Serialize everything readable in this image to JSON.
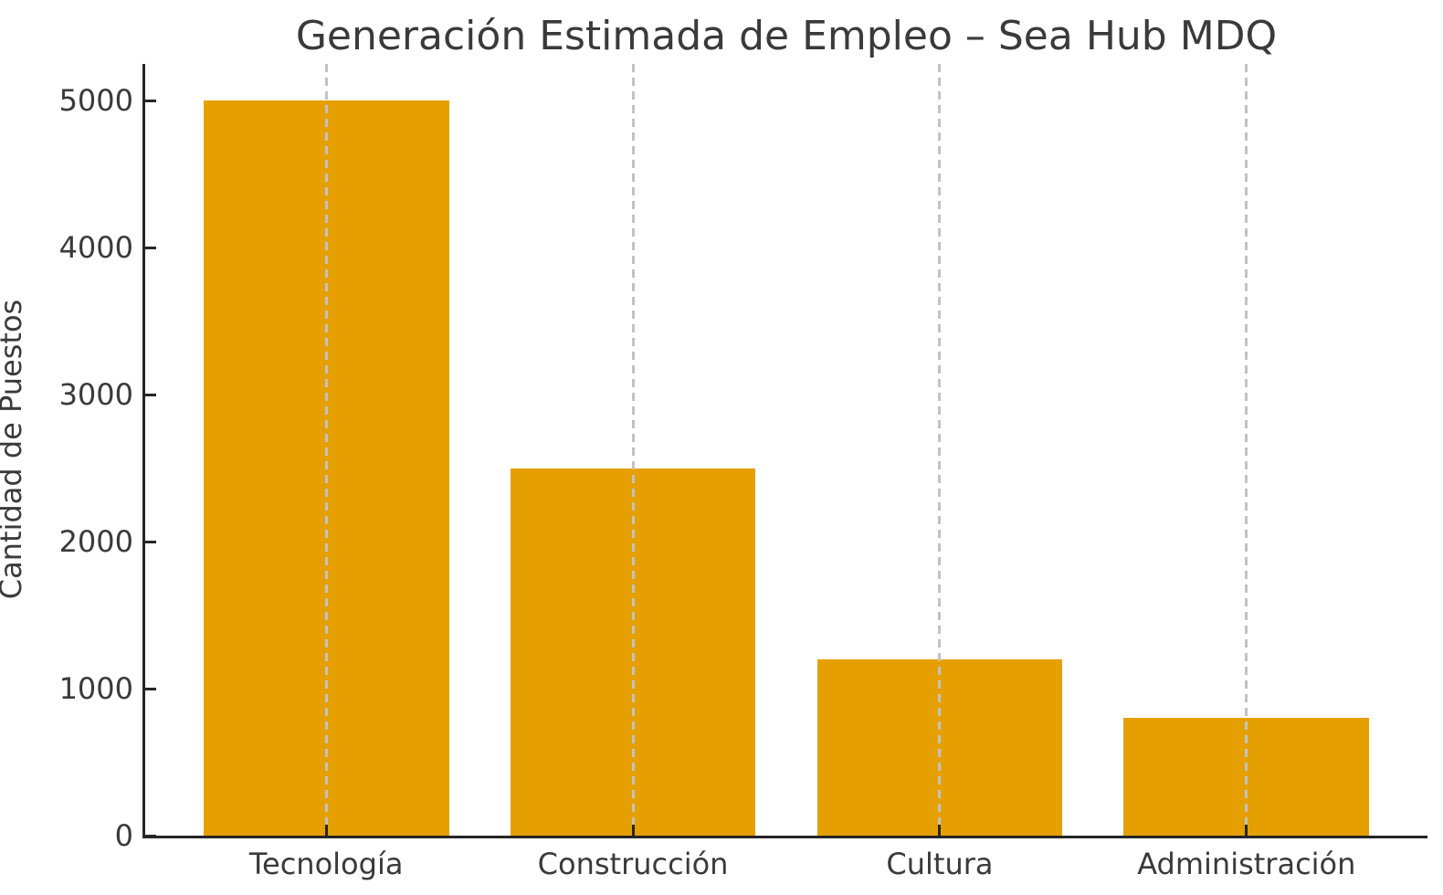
{
  "chart_data": {
    "type": "bar",
    "title": "Generación Estimada de Empleo – Sea Hub MDQ",
    "xlabel": "",
    "ylabel": "Cantidad de Puestos",
    "categories": [
      "Tecnología",
      "Construcción",
      "Cultura",
      "Administración"
    ],
    "values": [
      5000,
      2500,
      1200,
      800
    ],
    "yticks": [
      0,
      1000,
      2000,
      3000,
      4000,
      5000
    ],
    "ylim": [
      0,
      5250
    ],
    "xlim": [
      -0.59,
      3.59
    ],
    "bar_width": 0.8,
    "grid": "vertical-dashed-at-category-centers",
    "legend": "none",
    "colors": {
      "bar": "#E5A000",
      "gridline": "#c2c2c2",
      "axis": "#262626",
      "text": "#3a3a3a",
      "background": "#ffffff"
    }
  }
}
